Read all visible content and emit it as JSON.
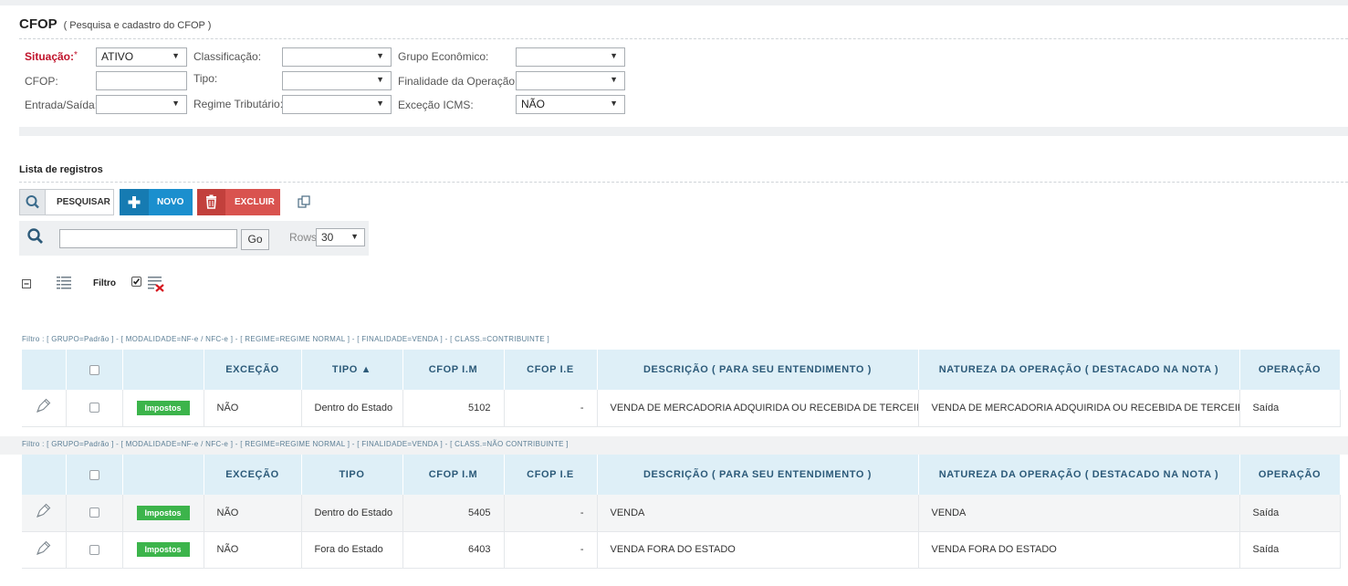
{
  "page": {
    "title": "CFOP",
    "subtitle": "( Pesquisa e cadastro do CFOP )"
  },
  "filters": {
    "situacao": {
      "label": "Situação:",
      "required_mark": "*",
      "value": "ATIVO"
    },
    "cfop": {
      "label": "CFOP:",
      "value": ""
    },
    "entrada_saida": {
      "label": "Entrada/Saída:",
      "value": ""
    },
    "classificacao": {
      "label": "Classificação:",
      "value": ""
    },
    "tipo": {
      "label": "Tipo:",
      "value": ""
    },
    "regime": {
      "label": "Regime Tributário:",
      "value": ""
    },
    "grupo": {
      "label": "Grupo Econômico:",
      "value": ""
    },
    "finalidade": {
      "label": "Finalidade da Operação:",
      "value": ""
    },
    "excecao": {
      "label": "Exceção ICMS:",
      "value": "NÃO"
    }
  },
  "list": {
    "title": "Lista de registros",
    "buttons": {
      "pesquisar": "PESQUISAR",
      "novo": "NOVO",
      "excluir": "EXCLUIR"
    },
    "search": {
      "go_label": "Go",
      "rows_label": "Rows",
      "rows_value": "30",
      "value": ""
    },
    "filtro_label": "Filtro",
    "columns": [
      "EXCEÇÃO",
      "TIPO ▲",
      "CFOP I.M",
      "CFOP I.E",
      "DESCRIÇÃO ( PARA SEU ENTENDIMENTO )",
      "NATUREZA DA OPERAÇÃO ( DESTACADO NA NOTA )",
      "OPERAÇÃO"
    ],
    "columns2": [
      "EXCEÇÃO",
      "TIPO",
      "CFOP I.M",
      "CFOP I.E",
      "DESCRIÇÃO ( PARA SEU ENTENDIMENTO )",
      "NATUREZA DA OPERAÇÃO ( DESTACADO NA NOTA )",
      "OPERAÇÃO"
    ],
    "groups": [
      {
        "filter_text": "Filtro : [ GRUPO=Padrão ] - [ MODALIDADE=NF-e / NFC-e ] - [ REGIME=REGIME NORMAL ] - [ FINALIDADE=VENDA ] - [ CLASS.=CONTRIBUINTE ]",
        "rows": [
          {
            "badge": "Impostos",
            "excecao": "NÃO",
            "tipo": "Dentro do Estado",
            "cfop_im": "5102",
            "cfop_ie": "-",
            "descricao": "VENDA DE MERCADORIA ADQUIRIDA OU RECEBIDA DE TERCEIROS",
            "natureza": "VENDA DE MERCADORIA ADQUIRIDA OU RECEBIDA DE TERCEIROS",
            "operacao": "Saída"
          }
        ]
      },
      {
        "filter_text": "Filtro : [ GRUPO=Padrão ] - [ MODALIDADE=NF-e / NFC-e ] - [ REGIME=REGIME NORMAL ] - [ FINALIDADE=VENDA ] - [ CLASS.=NÃO CONTRIBUINTE ]",
        "rows": [
          {
            "badge": "Impostos",
            "excecao": "NÃO",
            "tipo": "Dentro do Estado",
            "cfop_im": "5405",
            "cfop_ie": "-",
            "descricao": "VENDA",
            "natureza": "VENDA",
            "operacao": "Saída"
          },
          {
            "badge": "Impostos",
            "excecao": "NÃO",
            "tipo": "Fora do Estado",
            "cfop_im": "6403",
            "cfop_ie": "-",
            "descricao": "VENDA FORA DO ESTADO",
            "natureza": "VENDA FORA DO ESTADO",
            "operacao": "Saída"
          }
        ]
      }
    ]
  },
  "colors": {
    "accent_blue": "#1b8fce",
    "danger_red": "#d9534f",
    "badge_green": "#3cb44b",
    "header_bg": "#deeff7",
    "required_red": "#c0132b"
  },
  "icons": [
    "search-icon",
    "plus-icon",
    "trash-icon",
    "copy-icon",
    "collapse-icon",
    "column-chooser-icon",
    "clear-filter-icon",
    "edit-icon",
    "sort-asc-icon",
    "dropdown-arrow-icon"
  ]
}
